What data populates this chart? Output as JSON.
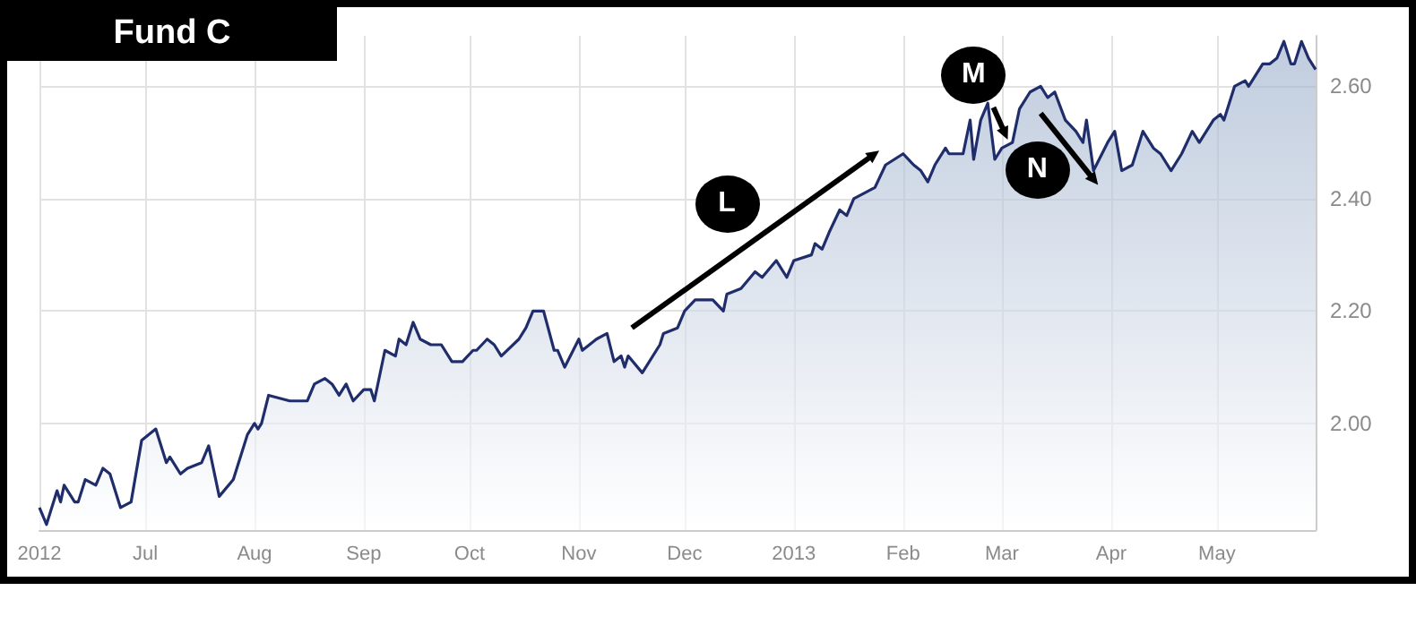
{
  "chart_data": {
    "type": "area",
    "title": "Fund C",
    "x": [
      "2012-06-01",
      "2012-06-03",
      "2012-06-06",
      "2012-06-07",
      "2012-06-08",
      "2012-06-11",
      "2012-06-12",
      "2012-06-14",
      "2012-06-17",
      "2012-06-19",
      "2012-06-21",
      "2012-06-24",
      "2012-06-27",
      "2012-06-30",
      "2012-07-04",
      "2012-07-07",
      "2012-07-08",
      "2012-07-11",
      "2012-07-13",
      "2012-07-17",
      "2012-07-19",
      "2012-07-22",
      "2012-07-26",
      "2012-07-30",
      "2012-08-01",
      "2012-08-02",
      "2012-08-03",
      "2012-08-05",
      "2012-08-11",
      "2012-08-14",
      "2012-08-16",
      "2012-08-18",
      "2012-08-21",
      "2012-08-23",
      "2012-08-25",
      "2012-08-27",
      "2012-08-29",
      "2012-09-01",
      "2012-09-03",
      "2012-09-04",
      "2012-09-07",
      "2012-09-10",
      "2012-09-11",
      "2012-09-13",
      "2012-09-15",
      "2012-09-17",
      "2012-09-20",
      "2012-09-23",
      "2012-09-26",
      "2012-09-29",
      "2012-10-02",
      "2012-10-03",
      "2012-10-06",
      "2012-10-08",
      "2012-10-10",
      "2012-10-15",
      "2012-10-17",
      "2012-10-19",
      "2012-10-22",
      "2012-10-25",
      "2012-10-26",
      "2012-10-28",
      "2012-11-01",
      "2012-11-02",
      "2012-11-06",
      "2012-11-09",
      "2012-11-11",
      "2012-11-13",
      "2012-11-14",
      "2012-11-15",
      "2012-11-19",
      "2012-11-24",
      "2012-11-25",
      "2012-11-29",
      "2012-12-01",
      "2012-12-04",
      "2012-12-07",
      "2012-12-09",
      "2012-12-12",
      "2012-12-13",
      "2012-12-17",
      "2012-12-21",
      "2012-12-23",
      "2012-12-27",
      "2012-12-30",
      "2013-01-01",
      "2013-01-06",
      "2013-01-07",
      "2013-01-09",
      "2013-01-11",
      "2013-01-14",
      "2013-01-16",
      "2013-01-18",
      "2013-01-21",
      "2013-01-24",
      "2013-01-27",
      "2013-02-01",
      "2013-02-04",
      "2013-02-06",
      "2013-02-08",
      "2013-02-10",
      "2013-02-13",
      "2013-02-14",
      "2013-02-15",
      "2013-02-18",
      "2013-02-20",
      "2013-02-21",
      "2013-02-23",
      "2013-02-25",
      "2013-02-27",
      "2013-03-01",
      "2013-03-04",
      "2013-03-06",
      "2013-03-09",
      "2013-03-12",
      "2013-03-14",
      "2013-03-16",
      "2013-03-19",
      "2013-03-22",
      "2013-03-24",
      "2013-03-25",
      "2013-03-27",
      "2013-03-31",
      "2013-04-02",
      "2013-04-04",
      "2013-04-07",
      "2013-04-10",
      "2013-04-13",
      "2013-04-15",
      "2013-04-18",
      "2013-04-21",
      "2013-04-24",
      "2013-04-26",
      "2013-04-30",
      "2013-05-02",
      "2013-05-03",
      "2013-05-06",
      "2013-05-09",
      "2013-05-10",
      "2013-05-14",
      "2013-05-16",
      "2013-05-18",
      "2013-05-20",
      "2013-05-22",
      "2013-05-23",
      "2013-05-25",
      "2013-05-27",
      "2013-05-29"
    ],
    "series": [
      {
        "color": "#1f2d6b",
        "values": [
          1.85,
          1.82,
          1.88,
          1.86,
          1.89,
          1.86,
          1.86,
          1.9,
          1.89,
          1.92,
          1.91,
          1.85,
          1.86,
          1.97,
          1.99,
          1.93,
          1.94,
          1.91,
          1.92,
          1.93,
          1.96,
          1.87,
          1.9,
          1.98,
          2.0,
          1.99,
          2.0,
          2.05,
          2.04,
          2.04,
          2.04,
          2.07,
          2.08,
          2.07,
          2.05,
          2.07,
          2.04,
          2.06,
          2.06,
          2.04,
          2.13,
          2.12,
          2.15,
          2.14,
          2.18,
          2.15,
          2.14,
          2.14,
          2.11,
          2.11,
          2.13,
          2.13,
          2.15,
          2.14,
          2.12,
          2.15,
          2.17,
          2.2,
          2.2,
          2.13,
          2.13,
          2.1,
          2.15,
          2.13,
          2.15,
          2.16,
          2.11,
          2.12,
          2.1,
          2.12,
          2.09,
          2.14,
          2.16,
          2.17,
          2.2,
          2.22,
          2.22,
          2.22,
          2.2,
          2.23,
          2.24,
          2.27,
          2.26,
          2.29,
          2.26,
          2.29,
          2.3,
          2.32,
          2.31,
          2.34,
          2.38,
          2.37,
          2.4,
          2.41,
          2.42,
          2.46,
          2.48,
          2.46,
          2.45,
          2.43,
          2.46,
          2.49,
          2.48,
          2.48,
          2.48,
          2.54,
          2.47,
          2.54,
          2.57,
          2.47,
          2.49,
          2.5,
          2.56,
          2.59,
          2.6,
          2.58,
          2.59,
          2.54,
          2.52,
          2.5,
          2.54,
          2.45,
          2.5,
          2.52,
          2.45,
          2.46,
          2.52,
          2.49,
          2.48,
          2.45,
          2.48,
          2.52,
          2.5,
          2.54,
          2.55,
          2.54,
          2.6,
          2.61,
          2.6,
          2.64,
          2.64,
          2.65,
          2.68,
          2.64,
          2.64,
          2.68,
          2.65,
          2.63
        ]
      }
    ],
    "xlim": [
      "2012-06-01",
      "2013-05-29"
    ],
    "xticks": [
      {
        "value": "2012-06-01",
        "label": "2012"
      },
      {
        "value": "2012-07-01",
        "label": "Jul"
      },
      {
        "value": "2012-08-01",
        "label": "Aug"
      },
      {
        "value": "2012-09-01",
        "label": "Sep"
      },
      {
        "value": "2012-10-01",
        "label": "Oct"
      },
      {
        "value": "2012-11-01",
        "label": "Nov"
      },
      {
        "value": "2012-12-01",
        "label": "Dec"
      },
      {
        "value": "2013-01-01",
        "label": "2013"
      },
      {
        "value": "2013-02-01",
        "label": "Feb"
      },
      {
        "value": "2013-03-01",
        "label": "Mar"
      },
      {
        "value": "2013-04-01",
        "label": "Apr"
      },
      {
        "value": "2013-05-01",
        "label": "May"
      }
    ],
    "ylim": [
      1.81,
      2.69
    ],
    "yticks": [
      {
        "value": 2,
        "label": "2.00"
      },
      {
        "value": 2.2,
        "label": "2.20"
      },
      {
        "value": 2.4,
        "label": "2.40"
      },
      {
        "value": 2.6,
        "label": "2.60"
      }
    ],
    "grid": true,
    "marker": "none",
    "annotations": [
      {
        "text": "L",
        "x": "2012-12-13",
        "y": 2.39
      },
      {
        "text": "M",
        "x": "2013-02-21",
        "y": 2.62
      },
      {
        "text": "N",
        "x": "2013-03-11",
        "y": 2.45
      }
    ]
  }
}
